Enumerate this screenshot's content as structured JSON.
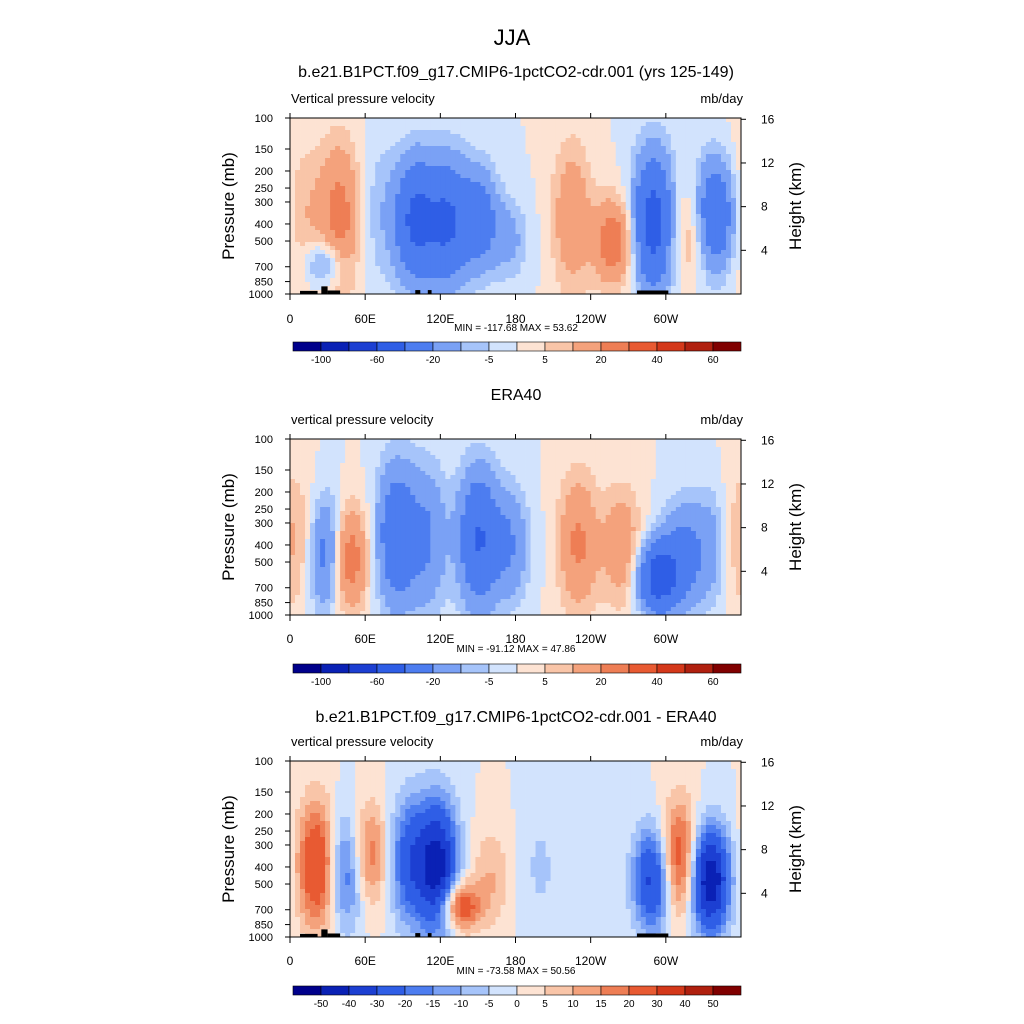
{
  "page_title": "JJA",
  "chart_data": [
    {
      "type": "heatmap",
      "title": "b.e21.B1PCT.f09_g17.CMIP6-1pctCO2-cdr.001 (yrs 125-149)",
      "left_label": "Vertical pressure velocity",
      "right_label": "mb/day",
      "ylabel": "Pressure (mb)",
      "y2label": "Height (km)",
      "x_ticks": [
        "0",
        "60E",
        "120E",
        "180",
        "120W",
        "60W"
      ],
      "y_ticks": [
        "100",
        "150",
        "200",
        "250",
        "300",
        "400",
        "500",
        "700",
        "850",
        "1000"
      ],
      "y2_ticks": [
        "16",
        "12",
        "8",
        "4"
      ],
      "stats": "MIN = -117.68  MAX =  53.62",
      "colorbar_labels": [
        "-100",
        "-60",
        "-20",
        "-5",
        "5",
        "20",
        "40",
        "60"
      ],
      "features": [
        {
          "lon": 15,
          "p_top": 150,
          "p_bot": 900,
          "value": 8
        },
        {
          "lon": 40,
          "p_top": 150,
          "p_bot": 900,
          "value": 25
        },
        {
          "lon": 28,
          "p_top": 500,
          "p_bot": 900,
          "value": -20
        },
        {
          "lon": 72,
          "p_top": 140,
          "p_bot": 850,
          "value": -8
        },
        {
          "lon": 100,
          "p_top": 180,
          "p_bot": 800,
          "value": -45
        },
        {
          "lon": 125,
          "p_top": 180,
          "p_bot": 850,
          "value": -40
        },
        {
          "lon": 150,
          "p_top": 200,
          "p_bot": 700,
          "value": -30
        },
        {
          "lon": 175,
          "p_top": 300,
          "p_bot": 800,
          "value": -12
        },
        {
          "lon": 225,
          "p_top": 150,
          "p_bot": 900,
          "value": 18
        },
        {
          "lon": 258,
          "p_top": 300,
          "p_bot": 850,
          "value": 28
        },
        {
          "lon": 290,
          "p_top": 170,
          "p_bot": 900,
          "value": -50
        },
        {
          "lon": 318,
          "p_top": 250,
          "p_bot": 850,
          "value": 12
        },
        {
          "lon": 340,
          "p_top": 180,
          "p_bot": 700,
          "value": -40
        },
        {
          "lon": 355,
          "p_top": 120,
          "p_bot": 900,
          "value": 5
        }
      ]
    },
    {
      "type": "heatmap",
      "title": "ERA40",
      "left_label": "vertical pressure velocity",
      "right_label": "mb/day",
      "ylabel": "Pressure (mb)",
      "y2label": "Height (km)",
      "x_ticks": [
        "0",
        "60E",
        "120E",
        "180",
        "120W",
        "60W"
      ],
      "y_ticks": [
        "100",
        "150",
        "200",
        "250",
        "300",
        "400",
        "500",
        "700",
        "850",
        "1000"
      ],
      "y2_ticks": [
        "16",
        "12",
        "8",
        "4"
      ],
      "stats": "MIN = -91.12  MAX =  47.86",
      "colorbar_labels": [
        "-100",
        "-60",
        "-20",
        "-5",
        "5",
        "20",
        "40",
        "60"
      ],
      "features": [
        {
          "lon": 10,
          "p_top": 180,
          "p_bot": 900,
          "value": 10
        },
        {
          "lon": 30,
          "p_top": 230,
          "p_bot": 900,
          "value": -35
        },
        {
          "lon": 45,
          "p_top": 250,
          "p_bot": 900,
          "value": 35
        },
        {
          "lon": 85,
          "p_top": 150,
          "p_bot": 850,
          "value": -35
        },
        {
          "lon": 110,
          "p_top": 150,
          "p_bot": 900,
          "value": -20
        },
        {
          "lon": 150,
          "p_top": 160,
          "p_bot": 850,
          "value": -40
        },
        {
          "lon": 175,
          "p_top": 200,
          "p_bot": 800,
          "value": -20
        },
        {
          "lon": 230,
          "p_top": 170,
          "p_bot": 900,
          "value": 22
        },
        {
          "lon": 265,
          "p_top": 200,
          "p_bot": 850,
          "value": 18
        },
        {
          "lon": 293,
          "p_top": 400,
          "p_bot": 950,
          "value": -50
        },
        {
          "lon": 312,
          "p_top": 250,
          "p_bot": 900,
          "value": -25
        },
        {
          "lon": 335,
          "p_top": 200,
          "p_bot": 850,
          "value": -15
        },
        {
          "lon": 355,
          "p_top": 150,
          "p_bot": 900,
          "value": 6
        }
      ]
    },
    {
      "type": "heatmap",
      "title": "b.e21.B1PCT.f09_g17.CMIP6-1pctCO2-cdr.001 - ERA40",
      "left_label": "vertical pressure velocity",
      "right_label": "mb/day",
      "ylabel": "Pressure (mb)",
      "y2label": "Height (km)",
      "x_ticks": [
        "0",
        "60E",
        "120E",
        "180",
        "120W",
        "60W"
      ],
      "y_ticks": [
        "100",
        "150",
        "200",
        "250",
        "300",
        "400",
        "500",
        "700",
        "850",
        "1000"
      ],
      "y2_ticks": [
        "16",
        "12",
        "8",
        "4"
      ],
      "stats": "MIN = -73.58  MAX =  50.56",
      "colorbar_labels": [
        "-50",
        "-40",
        "-30",
        "-20",
        "-15",
        "-10",
        "-5",
        "0",
        "5",
        "10",
        "15",
        "20",
        "30",
        "40",
        "50"
      ],
      "features": [
        {
          "lon": 22,
          "p_top": 180,
          "p_bot": 850,
          "value": 32
        },
        {
          "lon": 45,
          "p_top": 200,
          "p_bot": 850,
          "value": -25
        },
        {
          "lon": 62,
          "p_top": 180,
          "p_bot": 650,
          "value": 22
        },
        {
          "lon": 95,
          "p_top": 170,
          "p_bot": 800,
          "value": -25
        },
        {
          "lon": 118,
          "p_top": 180,
          "p_bot": 900,
          "value": -45
        },
        {
          "lon": 135,
          "p_top": 500,
          "p_bot": 900,
          "value": 30
        },
        {
          "lon": 160,
          "p_top": 250,
          "p_bot": 850,
          "value": 10
        },
        {
          "lon": 200,
          "p_top": 180,
          "p_bot": 900,
          "value": -6
        },
        {
          "lon": 290,
          "p_top": 250,
          "p_bot": 900,
          "value": -35
        },
        {
          "lon": 310,
          "p_top": 180,
          "p_bot": 750,
          "value": 30
        },
        {
          "lon": 335,
          "p_top": 250,
          "p_bot": 900,
          "value": -50
        }
      ]
    }
  ],
  "colors": {
    "blues": [
      "#00008b",
      "#0a21b5",
      "#1c3fd2",
      "#2f5ee6",
      "#4d7df0",
      "#7aa1f5",
      "#a6c4fa",
      "#d2e3fd"
    ],
    "reds": [
      "#fde3d3",
      "#f9c5a8",
      "#f4a27c",
      "#ee7e55",
      "#e85a32",
      "#d4381a",
      "#b0200f",
      "#800000"
    ],
    "topography": "#000000"
  }
}
